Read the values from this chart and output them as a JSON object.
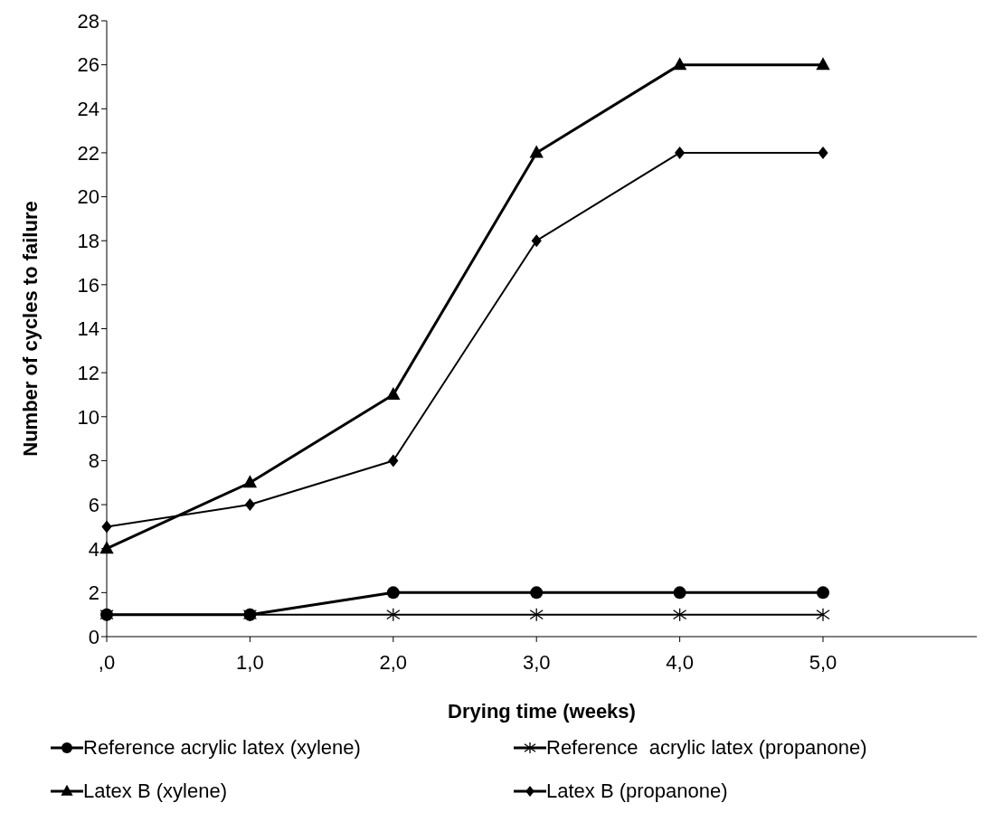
{
  "chart_data": {
    "type": "line",
    "xlabel": "Drying time (weeks)",
    "ylabel": "Number of cycles to failure",
    "categories": [
      ",0",
      "1,0",
      "2,0",
      "3,0",
      "4,0",
      "5,0"
    ],
    "ylim": [
      0,
      28
    ],
    "yticks": [
      0,
      2,
      4,
      6,
      8,
      10,
      12,
      14,
      16,
      18,
      20,
      22,
      24,
      26,
      28
    ],
    "grid": false,
    "legend": "bottom",
    "line_style": "solid",
    "series": [
      {
        "name": "Reference acrylic latex (xylene)",
        "color": "#000000",
        "marker": "circle",
        "values": [
          1,
          1,
          2,
          2,
          2,
          2
        ]
      },
      {
        "name": "Reference  acrylic latex (propanone)",
        "color": "#000000",
        "marker": "cross",
        "values": [
          1,
          1,
          1,
          1,
          1,
          1
        ]
      },
      {
        "name": "Latex B (xylene)",
        "color": "#000000",
        "marker": "triangle",
        "values": [
          4,
          7,
          11,
          22,
          26,
          26
        ]
      },
      {
        "name": "Latex B (propanone)",
        "color": "#000000",
        "marker": "diamond",
        "values": [
          5,
          6,
          8,
          18,
          22,
          22
        ]
      }
    ]
  }
}
